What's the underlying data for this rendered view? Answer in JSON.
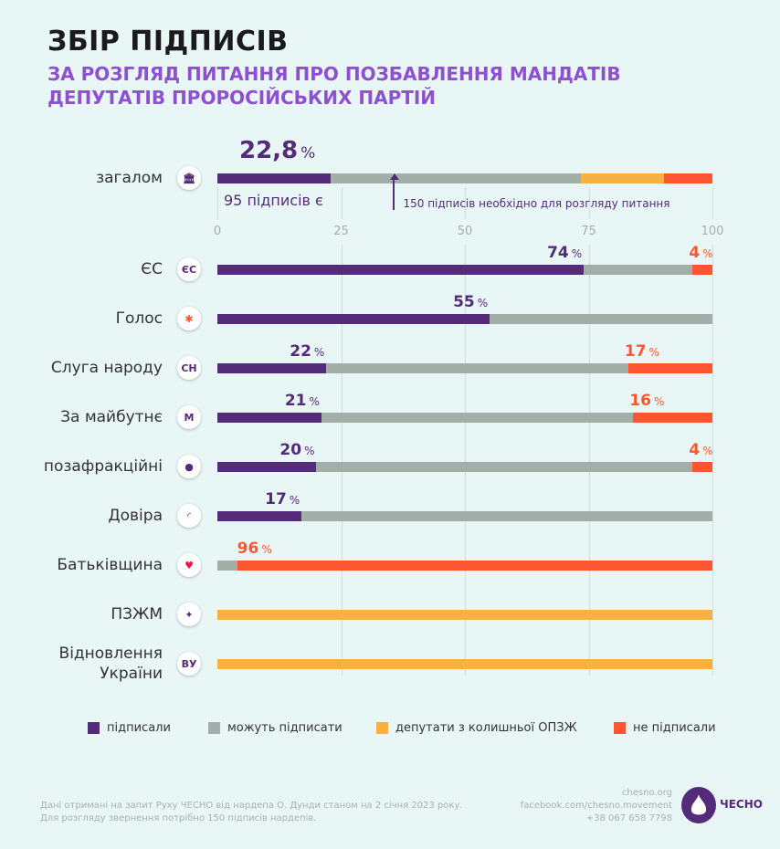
{
  "title": "ЗБІР ПІДПИСІВ",
  "subtitle": "ЗА РОЗГЛЯД ПИТАННЯ ПРО ПОЗБАВЛЕННЯ МАНДАТІВ ДЕПУТАТІВ ПРОРОСІЙСЬКИХ ПАРТІЙ",
  "colors": {
    "signed": "#532b78",
    "can_sign": "#a3aea9",
    "opzh": "#f7b141",
    "not_signed": "#ff5530"
  },
  "chart_data": {
    "type": "bar",
    "stacked": true,
    "orientation": "horizontal",
    "xlim": [
      0,
      100
    ],
    "ticks": [
      "0",
      "25",
      "50",
      "75",
      "100"
    ],
    "overall": {
      "label": "загалом",
      "icon": "parliament-icon",
      "value_label": "22,8",
      "unit": "%",
      "signed": 22.8,
      "can_sign": 50.6,
      "opzh": 16.9,
      "not_signed": 9.7,
      "count_text": "95 підписів є",
      "threshold": 35.7,
      "threshold_text": "150 підписів необхідно для розгляду питання"
    },
    "categories": [
      {
        "label": "ЄС",
        "icon": "ЄС",
        "signed": 74,
        "can_sign": 22,
        "opzh": 0,
        "not_signed": 4,
        "signed_label": "74",
        "not_label": "4"
      },
      {
        "label": "Голос",
        "icon": "✱",
        "signed": 55,
        "can_sign": 45,
        "opzh": 0,
        "not_signed": 0,
        "signed_label": "55",
        "not_label": ""
      },
      {
        "label": "Слуга народу",
        "icon": "СН",
        "signed": 22,
        "can_sign": 61,
        "opzh": 0,
        "not_signed": 17,
        "signed_label": "22",
        "not_label": "17"
      },
      {
        "label": "За майбутнє",
        "icon": "M",
        "signed": 21,
        "can_sign": 63,
        "opzh": 0,
        "not_signed": 16,
        "signed_label": "21",
        "not_label": "16"
      },
      {
        "label": "позафракційні",
        "icon": "●",
        "signed": 20,
        "can_sign": 76,
        "opzh": 0,
        "not_signed": 4,
        "signed_label": "20",
        "not_label": "4"
      },
      {
        "label": "Довіра",
        "icon": "◜",
        "signed": 17,
        "can_sign": 83,
        "opzh": 0,
        "not_signed": 0,
        "signed_label": "17",
        "not_label": ""
      },
      {
        "label": "Батьківщина",
        "icon": "♥",
        "signed": 0,
        "can_sign": 4,
        "opzh": 0,
        "not_signed": 96,
        "signed_label": "",
        "not_label": "96"
      },
      {
        "label": "ПЗЖМ",
        "icon": "✦",
        "signed": 0,
        "can_sign": 0,
        "opzh": 100,
        "not_signed": 0,
        "signed_label": "",
        "not_label": ""
      },
      {
        "label": "Відновлення України",
        "icon": "ВУ",
        "signed": 0,
        "can_sign": 0,
        "opzh": 100,
        "not_signed": 0,
        "signed_label": "",
        "not_label": ""
      }
    ],
    "unit": "%",
    "legend": [
      "підписали",
      "можуть підписати",
      "депутати з колишньої ОПЗЖ",
      "не підписали"
    ]
  },
  "footer": {
    "note1": "Дані отримані на запит Руху ЧЕСНО від нардепа О. Дунди станом на 2 січня 2023 року.",
    "note2": "Для розгляду звернення потрібно 150 підписів нардепів.",
    "site": "chesno.org",
    "facebook": "facebook.com/chesno.movement",
    "phone": "+38 067 658 7798",
    "brand": "ЧЕСНО"
  }
}
